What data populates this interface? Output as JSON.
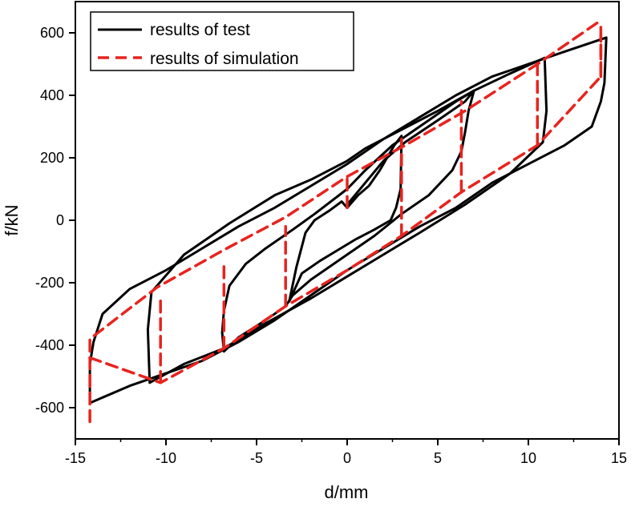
{
  "chart_data": {
    "type": "line",
    "title": "",
    "xlabel": "d/mm",
    "ylabel": "f/kN",
    "xlim": [
      -15,
      15
    ],
    "ylim": [
      -700,
      700
    ],
    "x_ticks": [
      -15,
      -10,
      -5,
      0,
      5,
      10,
      15
    ],
    "y_ticks": [
      -600,
      -400,
      -200,
      0,
      200,
      400,
      600
    ],
    "grid": false,
    "legend_position": "top-left",
    "series": [
      {
        "name": "results of test",
        "color": "#000000",
        "line_style": "solid",
        "loops": [
          [
            [
              0,
              40
            ],
            [
              0.6,
              80
            ],
            [
              1.2,
              110
            ],
            [
              1.8,
              160
            ],
            [
              2.2,
              200
            ],
            [
              2.6,
              240
            ],
            [
              3,
              270
            ],
            [
              2.95,
              100
            ],
            [
              2.7,
              40
            ],
            [
              2.4,
              0
            ],
            [
              1.5,
              -30
            ],
            [
              0.5,
              -60
            ],
            [
              -0.5,
              -95
            ],
            [
              -1.5,
              -130
            ],
            [
              -2.5,
              -170
            ],
            [
              -3.2,
              -260
            ],
            [
              -2.8,
              -150
            ],
            [
              -2.3,
              -40
            ],
            [
              -1.8,
              0
            ],
            [
              -1,
              30
            ],
            [
              -0.3,
              60
            ],
            [
              0,
              40
            ]
          ],
          [
            [
              0,
              50
            ],
            [
              2,
              190
            ],
            [
              3.2,
              250
            ],
            [
              5,
              320
            ],
            [
              6.5,
              380
            ],
            [
              7,
              415
            ],
            [
              6.7,
              350
            ],
            [
              6.5,
              280
            ],
            [
              6.3,
              220
            ],
            [
              5.8,
              160
            ],
            [
              4.5,
              80
            ],
            [
              3,
              20
            ],
            [
              1.5,
              -50
            ],
            [
              0,
              -110
            ],
            [
              -1,
              -150
            ],
            [
              -2,
              -190
            ],
            [
              -3,
              -240
            ],
            [
              -3.4,
              -275
            ],
            [
              -4.5,
              -320
            ],
            [
              -6,
              -375
            ],
            [
              -6.8,
              -420
            ],
            [
              -6.9,
              -360
            ],
            [
              -6.8,
              -290
            ],
            [
              -6.5,
              -210
            ],
            [
              -5.6,
              -140
            ],
            [
              -4.5,
              -90
            ],
            [
              -3,
              -30
            ],
            [
              -1.8,
              20
            ],
            [
              0,
              100
            ],
            [
              1,
              160
            ],
            [
              2.5,
              240
            ],
            [
              4,
              300
            ],
            [
              6,
              380
            ],
            [
              7,
              415
            ]
          ],
          [
            [
              -10.9,
              -520
            ],
            [
              -9,
              -460
            ],
            [
              -6.8,
              -410
            ],
            [
              -4.5,
              -330
            ],
            [
              -2,
              -250
            ],
            [
              0,
              -180
            ],
            [
              2,
              -110
            ],
            [
              4,
              -40
            ],
            [
              6.5,
              50
            ],
            [
              9,
              150
            ],
            [
              10.8,
              250
            ],
            [
              11,
              350
            ],
            [
              10.9,
              520
            ],
            [
              9,
              470
            ],
            [
              7,
              415
            ],
            [
              5,
              350
            ],
            [
              3,
              290
            ],
            [
              1,
              230
            ],
            [
              0,
              190
            ],
            [
              -2,
              130
            ],
            [
              -4,
              80
            ],
            [
              -6.5,
              -10
            ],
            [
              -9,
              -110
            ],
            [
              -10.8,
              -230
            ],
            [
              -11,
              -350
            ],
            [
              -10.9,
              -520
            ]
          ],
          [
            [
              -14.2,
              -585
            ],
            [
              -12,
              -530
            ],
            [
              -10,
              -490
            ],
            [
              -8,
              -450
            ],
            [
              -6,
              -390
            ],
            [
              -4,
              -320
            ],
            [
              -2,
              -240
            ],
            [
              0,
              -160
            ],
            [
              2,
              -90
            ],
            [
              4,
              -20
            ],
            [
              6,
              40
            ],
            [
              8,
              120
            ],
            [
              10,
              180
            ],
            [
              12,
              240
            ],
            [
              13.5,
              300
            ],
            [
              14,
              380
            ],
            [
              14.2,
              440
            ],
            [
              14.3,
              585
            ],
            [
              12,
              540
            ],
            [
              10,
              500
            ],
            [
              8,
              460
            ],
            [
              6,
              400
            ],
            [
              4,
              330
            ],
            [
              2,
              260
            ],
            [
              0,
              180
            ],
            [
              -2,
              110
            ],
            [
              -4,
              40
            ],
            [
              -6,
              -20
            ],
            [
              -8,
              -90
            ],
            [
              -10,
              -160
            ],
            [
              -12,
              -220
            ],
            [
              -13.5,
              -300
            ],
            [
              -14,
              -390
            ],
            [
              -14.2,
              -460
            ],
            [
              -14.2,
              -585
            ]
          ]
        ]
      },
      {
        "name": "results of simulation",
        "color": "#e8231e",
        "line_style": "dashed",
        "loops": [
          [
            [
              -14.2,
              -645
            ],
            [
              -14.2,
              -380
            ],
            [
              -10.5,
              -215
            ],
            [
              -6.8,
              -95
            ],
            [
              -3.4,
              10
            ],
            [
              0,
              140
            ],
            [
              3.2,
              240
            ],
            [
              6.5,
              350
            ],
            [
              10.5,
              500
            ],
            [
              14,
              640
            ]
          ],
          [
            [
              -14.2,
              -440
            ],
            [
              -10.3,
              -520
            ],
            [
              -6.8,
              -410
            ],
            [
              -3.4,
              -275
            ],
            [
              0,
              -160
            ],
            [
              3,
              -50
            ],
            [
              6.3,
              90
            ],
            [
              10.5,
              240
            ],
            [
              14,
              460
            ],
            [
              14,
              620
            ]
          ],
          [
            [
              -10.3,
              -520
            ],
            [
              -10.3,
              -240
            ]
          ],
          [
            [
              -6.8,
              -410
            ],
            [
              -6.8,
              -130
            ]
          ],
          [
            [
              -3.4,
              -275
            ],
            [
              -3.4,
              -20
            ]
          ],
          [
            [
              0,
              40
            ],
            [
              0,
              140
            ]
          ],
          [
            [
              3,
              -50
            ],
            [
              3,
              260
            ]
          ],
          [
            [
              6.3,
              90
            ],
            [
              6.3,
              380
            ]
          ],
          [
            [
              10.5,
              240
            ],
            [
              10.5,
              520
            ]
          ],
          [
            [
              14,
              460
            ],
            [
              14,
              590
            ]
          ]
        ]
      }
    ]
  }
}
